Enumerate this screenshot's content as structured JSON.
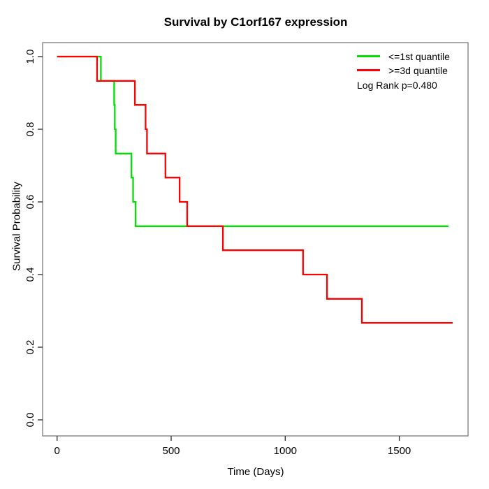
{
  "chart_data": {
    "type": "line",
    "subtype": "kaplan-meier-step",
    "title": "Survival by C1orf167 expression",
    "xlabel": "Time (Days)",
    "ylabel": "Survival Probability",
    "xlim": [
      0,
      1800
    ],
    "ylim": [
      0,
      1
    ],
    "x_ticks": [
      0,
      500,
      1000,
      1500
    ],
    "x_tick_labels": [
      "0",
      "500",
      "1000",
      "1500"
    ],
    "y_ticks": [
      0,
      0.2,
      0.4,
      0.6,
      0.8,
      1
    ],
    "y_tick_labels": [
      "0.0",
      "0.2",
      "0.4",
      "0.6",
      "0.8",
      "1.0"
    ],
    "grid": false,
    "legend": {
      "position": "top-right",
      "entries": [
        {
          "label": "<=1st quantile",
          "color": "#00e000"
        },
        {
          "label": ">=3d quantile",
          "color": "#ff0000"
        }
      ]
    },
    "annotation": "Log Rank p=0.480",
    "log_rank_p": 0.48,
    "series": [
      {
        "name": "<=1st quantile",
        "color": "#00e000",
        "steps": [
          [
            0,
            1.0
          ],
          [
            192,
            0.933
          ],
          [
            250,
            0.867
          ],
          [
            253,
            0.8
          ],
          [
            257,
            0.733
          ],
          [
            326,
            0.667
          ],
          [
            333,
            0.6
          ],
          [
            344,
            0.533
          ]
        ],
        "end_time": 1716
      },
      {
        "name": ">=3d quantile",
        "color": "#ff0000",
        "steps": [
          [
            0,
            1.0
          ],
          [
            175,
            0.933
          ],
          [
            341,
            0.867
          ],
          [
            388,
            0.8
          ],
          [
            394,
            0.733
          ],
          [
            475,
            0.667
          ],
          [
            537,
            0.6
          ],
          [
            570,
            0.533
          ],
          [
            727,
            0.467
          ],
          [
            1078,
            0.4
          ],
          [
            1183,
            0.333
          ],
          [
            1336,
            0.267
          ]
        ],
        "end_time": 1734
      }
    ]
  }
}
